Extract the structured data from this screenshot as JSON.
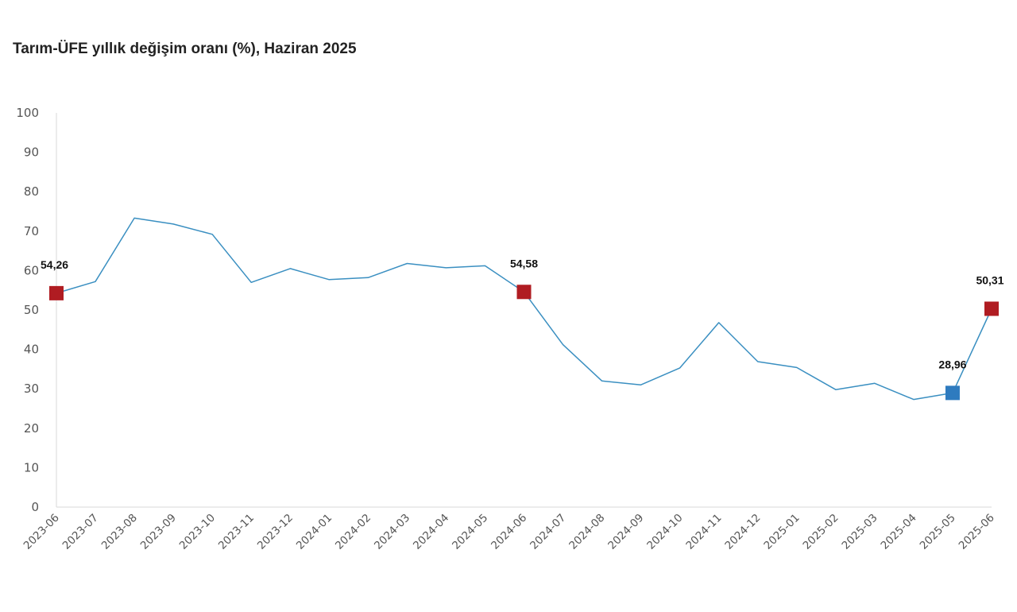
{
  "title": "Tarım-ÜFE yıllık değişim oranı (%), Haziran 2025",
  "colors": {
    "line": "#3a8fc1",
    "highlight_red": "#b01c22",
    "highlight_blue": "#2e7bbf",
    "axis": "#d9d9d9",
    "text": "#555555"
  },
  "chart_data": {
    "type": "line",
    "title": "Tarım-ÜFE yıllık değişim oranı (%), Haziran 2025",
    "xlabel": "",
    "ylabel": "",
    "ylim": [
      0,
      100
    ],
    "yticks": [
      0,
      10,
      20,
      30,
      40,
      50,
      60,
      70,
      80,
      90,
      100
    ],
    "grid": false,
    "legend": "none",
    "categories": [
      "2023-06",
      "2023-07",
      "2023-08",
      "2023-09",
      "2023-10",
      "2023-11",
      "2023-12",
      "2024-01",
      "2024-02",
      "2024-03",
      "2024-04",
      "2024-05",
      "2024-06",
      "2024-07",
      "2024-08",
      "2024-09",
      "2024-10",
      "2024-11",
      "2024-12",
      "2025-01",
      "2025-02",
      "2025-03",
      "2025-04",
      "2025-05",
      "2025-06"
    ],
    "series": [
      {
        "values": [
          54.26,
          57.2,
          73.3,
          71.8,
          69.2,
          57.0,
          60.5,
          57.7,
          58.2,
          61.8,
          60.7,
          61.2,
          54.58,
          41.2,
          32.0,
          31.0,
          35.3,
          46.8,
          36.9,
          35.4,
          29.8,
          31.4,
          27.3,
          28.96,
          50.31
        ]
      }
    ],
    "highlights": [
      {
        "category": "2023-06",
        "value": 54.26,
        "label": "54,26",
        "color": "red"
      },
      {
        "category": "2024-06",
        "value": 54.58,
        "label": "54,58",
        "color": "red"
      },
      {
        "category": "2025-05",
        "value": 28.96,
        "label": "28,96",
        "color": "blue"
      },
      {
        "category": "2025-06",
        "value": 50.31,
        "label": "50,31",
        "color": "red"
      }
    ]
  }
}
